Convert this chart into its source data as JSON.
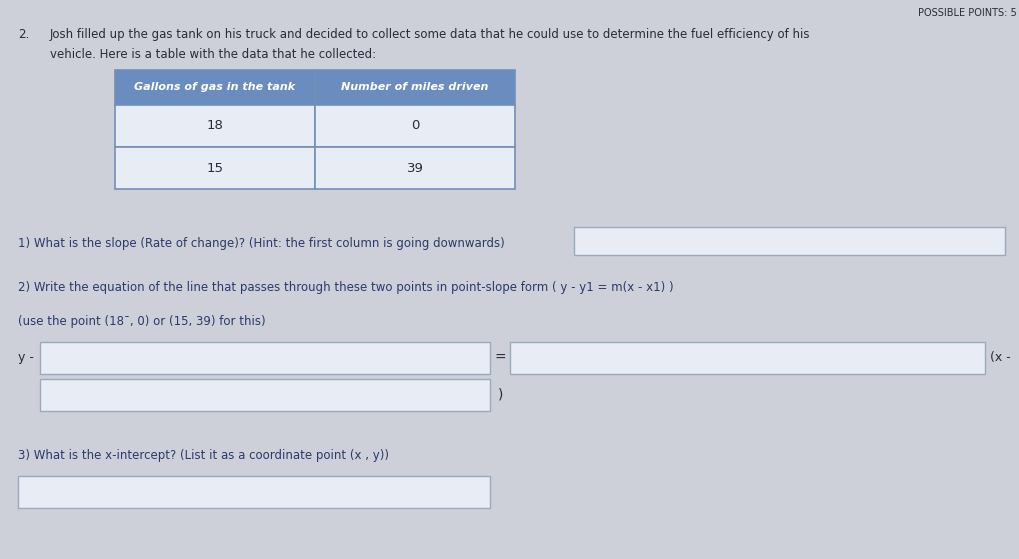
{
  "background_color": "#cdd0d8",
  "possible_points_text": "POSSIBLE POINTS: 5",
  "problem_number": "2.",
  "problem_line1": "Josh filled up the gas tank on his truck and decided to collect some data that he could use to determine the fuel efficiency of his",
  "problem_line2": "vehicle. Here is a table with the data that he collected:",
  "table_header": [
    "Gallons of gas in the tank",
    "Number of miles driven"
  ],
  "table_row1": [
    "18",
    "0"
  ],
  "table_row2": [
    "15",
    "39"
  ],
  "q1_text": "1) What is the slope (Rate of change)? (Hint: the first column is going downwards)",
  "q2_text": "2) Write the equation of the line that passes through these two points in point-slope form ( y - y1 = m(x - x1) )",
  "q2_subtext": "(use the point (18¯, 0) or (15, 39) for this)",
  "q2_prefix_y": "y -",
  "q2_equals": "=",
  "q2_suffix_x": "(x -",
  "q3_text": "3) What is the x-intercept? (List it as a coordinate point (x , y))",
  "table_header_bg": "#6b8cbe",
  "table_header_text_color": "#ffffff",
  "table_cell_bg": "#e8edf5",
  "table_border_color": "#7090b8",
  "input_box_bg": "#e8edf5",
  "input_box_border": "#9aaabb",
  "font_color_main": "#2a2a3a",
  "text_color_blue": "#2a3a6a"
}
